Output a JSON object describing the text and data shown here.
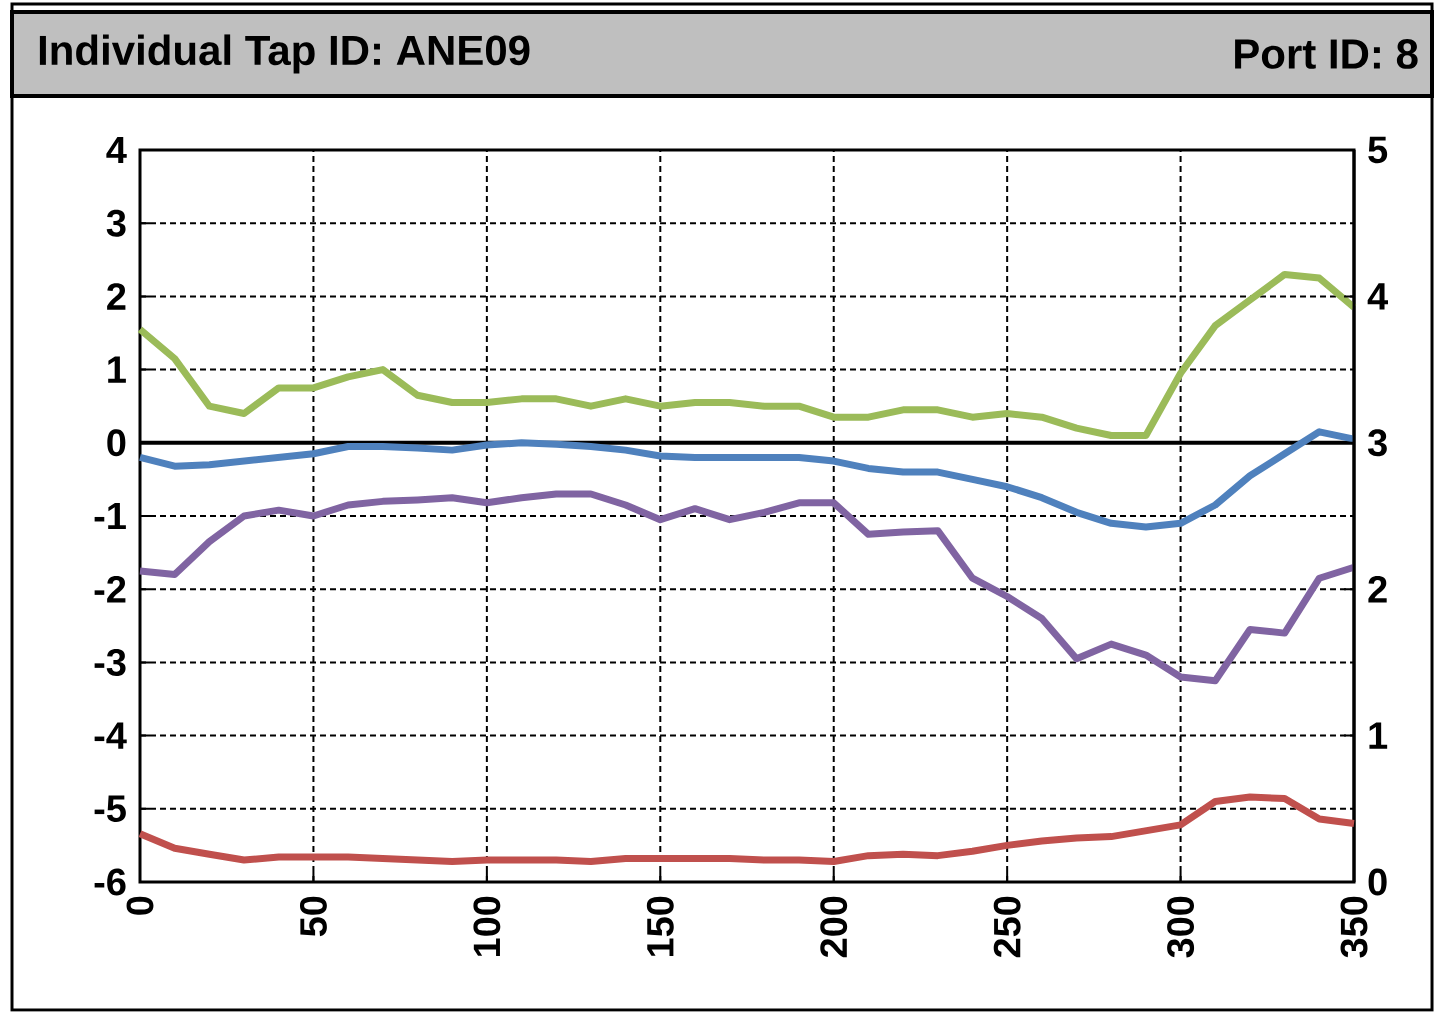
{
  "chart_data": {
    "type": "line",
    "title": "Individual Tap ID: ANE09",
    "subtitle": "Port ID: 8",
    "x": [
      0,
      10,
      20,
      30,
      40,
      50,
      60,
      70,
      80,
      90,
      100,
      110,
      120,
      130,
      140,
      150,
      160,
      170,
      180,
      190,
      200,
      210,
      220,
      230,
      240,
      250,
      260,
      270,
      280,
      290,
      300,
      310,
      320,
      330,
      340,
      350
    ],
    "series": [
      {
        "color": "#9bbb59",
        "values": [
          1.55,
          1.15,
          0.5,
          0.4,
          0.75,
          0.75,
          0.9,
          1.0,
          0.65,
          0.55,
          0.55,
          0.6,
          0.6,
          0.5,
          0.6,
          0.5,
          0.55,
          0.55,
          0.5,
          0.5,
          0.35,
          0.35,
          0.45,
          0.45,
          0.35,
          0.4,
          0.35,
          0.2,
          0.1,
          0.1,
          0.95,
          1.6,
          1.95,
          2.3,
          2.25,
          1.85
        ]
      },
      {
        "color": "#4f81bd",
        "values": [
          -0.2,
          -0.32,
          -0.3,
          -0.25,
          -0.2,
          -0.15,
          -0.05,
          -0.05,
          -0.07,
          -0.1,
          -0.03,
          0,
          -0.02,
          -0.05,
          -0.1,
          -0.18,
          -0.2,
          -0.2,
          -0.2,
          -0.2,
          -0.25,
          -0.35,
          -0.4,
          -0.4,
          -0.5,
          -0.6,
          -0.75,
          -0.95,
          -1.1,
          -1.15,
          -1.1,
          -0.85,
          -0.45,
          -0.15,
          0.15,
          0.05
        ]
      },
      {
        "color": "#8064a2",
        "values": [
          -1.75,
          -1.8,
          -1.35,
          -1.0,
          -0.92,
          -1.0,
          -0.85,
          -0.8,
          -0.78,
          -0.75,
          -0.82,
          -0.75,
          -0.7,
          -0.7,
          -0.85,
          -1.05,
          -0.9,
          -1.05,
          -0.95,
          -0.82,
          -0.82,
          -1.25,
          -1.22,
          -1.2,
          -1.85,
          -2.1,
          -2.4,
          -2.95,
          -2.75,
          -2.9,
          -3.2,
          -3.25,
          -2.55,
          -2.6,
          -1.85,
          -1.7
        ]
      },
      {
        "color": "#c0504d",
        "axis": "y2",
        "values": [
          0.33,
          0.23,
          0.19,
          0.15,
          0.17,
          0.17,
          0.17,
          0.16,
          0.15,
          0.14,
          0.15,
          0.15,
          0.15,
          0.14,
          0.16,
          0.16,
          0.16,
          0.16,
          0.15,
          0.15,
          0.14,
          0.18,
          0.19,
          0.18,
          0.21,
          0.25,
          0.28,
          0.3,
          0.31,
          0.35,
          0.39,
          0.55,
          0.58,
          0.57,
          0.43,
          0.4
        ]
      }
    ],
    "xlim": [
      0,
      350
    ],
    "xticks": [
      0,
      50,
      100,
      150,
      200,
      250,
      300,
      350
    ],
    "ylim": [
      -6,
      4
    ],
    "yticks": [
      -6,
      -5,
      -4,
      -3,
      -2,
      -1,
      0,
      1,
      2,
      3,
      4
    ],
    "y2lim": [
      0,
      5
    ],
    "y2ticks": [
      0,
      1,
      2,
      3,
      4,
      5
    ],
    "ref_lines": [
      {
        "axis": "y",
        "value": 0,
        "color": "#000000"
      }
    ],
    "grid": true,
    "marker": "none",
    "line_style": "solid"
  }
}
